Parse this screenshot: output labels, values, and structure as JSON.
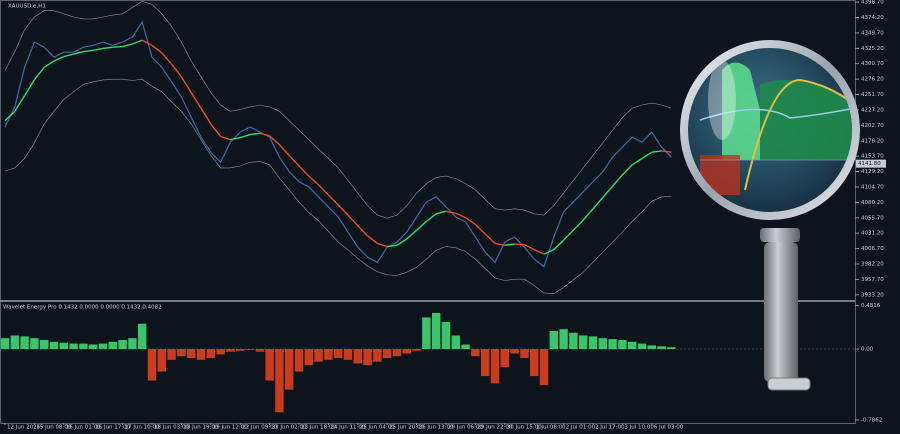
{
  "chart_data": [
    {
      "type": "line",
      "title": "XAUUSD.e,H1",
      "categories": [
        "12 Jun 2026",
        null,
        null,
        "15 Jun 08:00",
        null,
        null,
        "16 Jun 01:00",
        null,
        null,
        "16 Jun 17:00",
        null,
        null,
        "17 Jun 10:00",
        null,
        null,
        "18 Jun 03:00",
        null,
        null,
        "18 Jun 19:00",
        null,
        null,
        "19 Jun 12:00",
        null,
        null,
        "22 Jun 09:00",
        null,
        null,
        "23 Jun 02:00",
        null,
        null,
        "23 Jun 18:00",
        null,
        null,
        "24 Jun 11:00",
        null,
        null,
        "25 Jun 04:00",
        null,
        null,
        "25 Jun 20:00",
        null,
        null,
        "26 Jun 13:00",
        null,
        null,
        "29 Jun 06:00",
        null,
        null,
        "29 Jun 22:00",
        null,
        null,
        "30 Jun 15:00",
        null,
        null,
        "1 Jul 08:00",
        null,
        null,
        "2 Jul 01:00",
        null,
        null,
        "2 Jul 17:00",
        null,
        null,
        "3 Jul 10:00",
        null,
        null,
        "6 Jul 03:00",
        null,
        null
      ],
      "series": [
        {
          "color": "#8a98b0",
          "values": [
            4290,
            4320,
            4355,
            4375,
            4385,
            4385,
            4380,
            4375,
            4372,
            4372,
            4375,
            4378,
            4380,
            4390,
            4400,
            4395,
            4380,
            4360,
            4335,
            4305,
            4280,
            4255,
            4235,
            4225,
            4228,
            4232,
            4235,
            4232,
            4225,
            4210,
            4195,
            4180,
            4165,
            4150,
            4135,
            4115,
            4095,
            4075,
            4060,
            4055,
            4060,
            4075,
            4095,
            4110,
            4120,
            4122,
            4118,
            4110,
            4100,
            4085,
            4070,
            4068,
            4070,
            4068,
            4062,
            4060,
            4075,
            4095,
            4115,
            4135,
            4155,
            4175,
            4195,
            4215,
            4230,
            4235,
            4238,
            4235,
            4230
          ]
        },
        {
          "color": "#8a98b0",
          "values": [
            4130,
            4135,
            4150,
            4175,
            4205,
            4225,
            4244,
            4256,
            4268,
            4272,
            4275,
            4276,
            4276,
            4274,
            4276,
            4265,
            4256,
            4240,
            4225,
            4205,
            4180,
            4155,
            4135,
            4135,
            4138,
            4144,
            4145,
            4140,
            4119,
            4100,
            4081,
            4064,
            4051,
            4034,
            4017,
            4005,
            3991,
            3979,
            3970,
            3965,
            3964,
            3969,
            3977,
            3990,
            4004,
            4010,
            4008,
            4002,
            3990,
            3975,
            3960,
            3956,
            3958,
            3958,
            3948,
            3936,
            3935,
            3945,
            3957,
            3969,
            3985,
            4001,
            4017,
            4033,
            4050,
            4065,
            4082,
            4089,
            4090
          ]
        },
        {
          "color": "#3f6aa8",
          "values": [
            4200,
            4232,
            4295,
            4335,
            4327,
            4311,
            4319,
            4319,
            4327,
            4330,
            4335,
            4330,
            4335,
            4343,
            4367,
            4311,
            4295,
            4272,
            4248,
            4216,
            4184,
            4160,
            4144,
            4176,
            4192,
            4200,
            4192,
            4184,
            4152,
            4129,
            4113,
            4105,
            4089,
            4073,
            4057,
            4033,
            4009,
            3993,
            3985,
            4009,
            4017,
            4033,
            4057,
            4081,
            4089,
            4073,
            4057,
            4049,
            4025,
            4001,
            3985,
            4017,
            4025,
            4009,
            3990,
            3978,
            4025,
            4065,
            4081,
            4097,
            4113,
            4129,
            4152,
            4168,
            4184,
            4176,
            4192,
            4168,
            4152
          ]
        },
        {
          "color": "#2ee06a",
          "down_color": "#f04a2a",
          "values": [
            4210,
            4225,
            4250,
            4275,
            4295,
            4305,
            4312,
            4316,
            4320,
            4322,
            4325,
            4327,
            4328,
            4332,
            4338,
            4330,
            4318,
            4300,
            4280,
            4255,
            4230,
            4205,
            4185,
            4180,
            4183,
            4188,
            4190,
            4186,
            4172,
            4155,
            4138,
            4122,
            4108,
            4092,
            4076,
            4060,
            4043,
            4027,
            4015,
            4010,
            4012,
            4022,
            4036,
            4050,
            4062,
            4066,
            4063,
            4056,
            4045,
            4030,
            4015,
            4012,
            4014,
            4013,
            4005,
            3998,
            4005,
            4020,
            4036,
            4052,
            4070,
            4088,
            4106,
            4124,
            4140,
            4150,
            4160,
            4162,
            4160
          ]
        }
      ],
      "current_price": {
        "value": 4141.8,
        "label": "4141.80"
      },
      "ylim": [
        3925,
        4402
      ],
      "yticks": [
        {
          "value": 4398.7,
          "label": "4398.70"
        },
        {
          "value": 4374.2,
          "label": "4374.20"
        },
        {
          "value": 4349.7,
          "label": "4349.70"
        },
        {
          "value": 4325.2,
          "label": "4325.20"
        },
        {
          "value": 4300.7,
          "label": "4300.70"
        },
        {
          "value": 4276.2,
          "label": "4276.20"
        },
        {
          "value": 4251.7,
          "label": "4251.70"
        },
        {
          "value": 4227.2,
          "label": "4227.20"
        },
        {
          "value": 4202.7,
          "label": "4202.70"
        },
        {
          "value": 4178.2,
          "label": "4178.20"
        },
        {
          "value": 4153.7,
          "label": "4153.70"
        },
        {
          "value": 4129.2,
          "label": "4129.20"
        },
        {
          "value": 4104.7,
          "label": "4104.70"
        },
        {
          "value": 4080.2,
          "label": "4080.20"
        },
        {
          "value": 4055.7,
          "label": "4055.70"
        },
        {
          "value": 4031.2,
          "label": "4031.20"
        },
        {
          "value": 4006.7,
          "label": "4006.70"
        },
        {
          "value": 3982.2,
          "label": "3982.20"
        },
        {
          "value": 3957.7,
          "label": "3957.70"
        },
        {
          "value": 3933.2,
          "label": "3933.20"
        }
      ],
      "grid": false
    },
    {
      "type": "bar",
      "title": "Wavelet Energy Pro 0.1432 0.0000 0.0000 0.1432 0.4082",
      "values": [
        0.12,
        0.15,
        0.14,
        0.12,
        0.1,
        0.08,
        0.07,
        0.06,
        0.06,
        0.05,
        0.06,
        0.08,
        0.1,
        0.12,
        0.28,
        -0.35,
        -0.25,
        -0.12,
        -0.08,
        -0.1,
        -0.12,
        -0.1,
        -0.06,
        -0.03,
        -0.02,
        -0.01,
        -0.03,
        -0.35,
        -0.7,
        -0.45,
        -0.25,
        -0.18,
        -0.14,
        -0.12,
        -0.1,
        -0.12,
        -0.16,
        -0.18,
        -0.14,
        -0.1,
        -0.08,
        -0.05,
        -0.02,
        0.35,
        0.4,
        0.3,
        0.15,
        0.05,
        -0.08,
        -0.3,
        -0.38,
        -0.2,
        -0.05,
        -0.1,
        -0.3,
        -0.4,
        0.2,
        0.22,
        0.18,
        0.15,
        0.14,
        0.12,
        0.11,
        0.1,
        0.08,
        0.06,
        0.04,
        0.03,
        0.02
      ],
      "color": "#3fd873",
      "down_color": "#e0401e",
      "ylim": [
        -0.82,
        0.51
      ],
      "yticks": [
        0.4816,
        {
          "value": 0,
          "label": "0.00"
        },
        -0.7862
      ],
      "grid": false
    }
  ]
}
